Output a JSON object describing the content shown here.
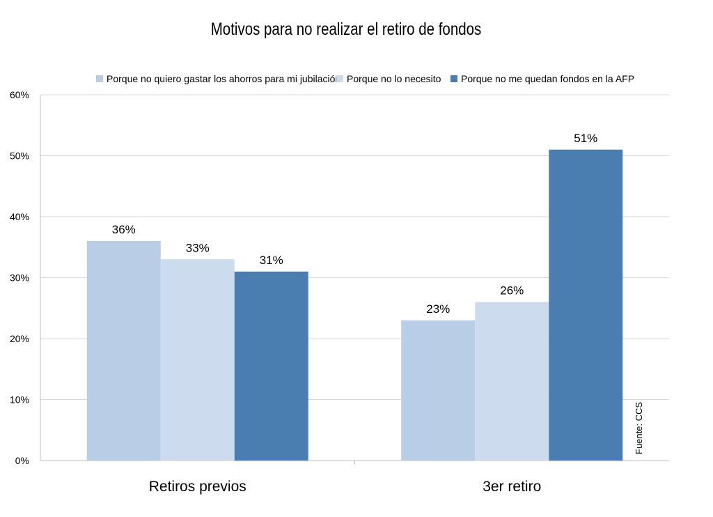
{
  "chart_data": {
    "type": "bar",
    "title": "Motivos para no realizar el retiro de fondos",
    "categories": [
      "Retiros previos",
      "3er retiro"
    ],
    "series": [
      {
        "name": "Porque no quiero gastar los ahorros para mi jubilación",
        "values": [
          36,
          23
        ],
        "labels": [
          "36%",
          "23%"
        ],
        "color": "#b9cde6"
      },
      {
        "name": "Porque no lo necesito",
        "values": [
          33,
          26
        ],
        "labels": [
          "33%",
          "26%"
        ],
        "color": "#ccdbed"
      },
      {
        "name": "Porque no me quedan fondos en la AFP",
        "values": [
          31,
          51
        ],
        "labels": [
          "31%",
          "51%"
        ],
        "color": "#4a7eb0"
      }
    ],
    "ylim": [
      0,
      60
    ],
    "yticks": [
      0,
      10,
      20,
      30,
      40,
      50,
      60
    ],
    "ytick_labels": [
      "0%",
      "10%",
      "20%",
      "30%",
      "40%",
      "50%",
      "60%"
    ],
    "xlabel": "",
    "ylabel": "",
    "grid": true,
    "legend_position": "top",
    "source": "Fuente: CCS",
    "gridline_color": "#d9d9d9",
    "axis_color": "#bfbfbf"
  }
}
